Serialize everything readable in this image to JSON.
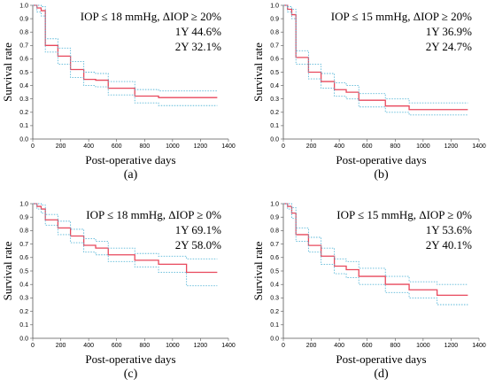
{
  "chart_data": [
    {
      "type": "line",
      "panel_label": "(a)",
      "xlabel": "Post-operative days",
      "ylabel": "Survival rate",
      "xlim": [
        0,
        1400
      ],
      "ylim": [
        0,
        1.0
      ],
      "xticks": [
        "0",
        "200",
        "400",
        "600",
        "800",
        "1000",
        "1200",
        "1400"
      ],
      "yticks": [
        "0.0",
        "0.1",
        "0.2",
        "0.3",
        "0.4",
        "0.5",
        "0.6",
        "0.7",
        "0.8",
        "0.9",
        "1.0"
      ],
      "annotation": [
        "IOP ≤ 18 mmHg, ΔIOP ≥ 20%",
        "1Y 44.6%",
        "2Y 32.1%"
      ],
      "colors": {
        "curve": "#e8485c",
        "ci": "#5bb8d8"
      },
      "series": [
        {
          "style": "solid",
          "x": [
            0,
            30,
            60,
            90,
            180,
            270,
            365,
            450,
            540,
            730,
            900,
            1320
          ],
          "y": [
            1.0,
            0.98,
            0.96,
            0.7,
            0.62,
            0.52,
            0.446,
            0.44,
            0.38,
            0.321,
            0.31,
            0.31
          ]
        },
        {
          "style": "dotted",
          "x": [
            0,
            30,
            60,
            90,
            180,
            270,
            365,
            450,
            540,
            730,
            900,
            1320
          ],
          "y": [
            1.0,
            1.0,
            0.99,
            0.75,
            0.68,
            0.58,
            0.5,
            0.49,
            0.43,
            0.37,
            0.36,
            0.36
          ]
        },
        {
          "style": "dotted",
          "x": [
            0,
            30,
            60,
            90,
            180,
            270,
            365,
            450,
            540,
            730,
            900,
            1320
          ],
          "y": [
            1.0,
            0.95,
            0.92,
            0.65,
            0.56,
            0.46,
            0.4,
            0.39,
            0.33,
            0.27,
            0.25,
            0.25
          ]
        }
      ]
    },
    {
      "type": "line",
      "panel_label": "(b)",
      "xlabel": "Post-operative days",
      "ylabel": "Survival rate",
      "xlim": [
        0,
        1400
      ],
      "ylim": [
        0,
        1.0
      ],
      "xticks": [
        "0",
        "200",
        "400",
        "600",
        "800",
        "1000",
        "1200",
        "1400"
      ],
      "yticks": [
        "0.0",
        "0.1",
        "0.2",
        "0.3",
        "0.4",
        "0.5",
        "0.6",
        "0.7",
        "0.8",
        "0.9",
        "1.0"
      ],
      "annotation": [
        "IOP ≤ 15 mmHg, ΔIOP ≥ 20%",
        "1Y 36.9%",
        "2Y 24.7%"
      ],
      "colors": {
        "curve": "#e8485c",
        "ci": "#5bb8d8"
      },
      "series": [
        {
          "style": "solid",
          "x": [
            0,
            30,
            60,
            90,
            180,
            270,
            365,
            450,
            540,
            730,
            900,
            1320
          ],
          "y": [
            1.0,
            0.97,
            0.93,
            0.61,
            0.5,
            0.43,
            0.369,
            0.35,
            0.29,
            0.247,
            0.22,
            0.22
          ]
        },
        {
          "style": "dotted",
          "x": [
            0,
            30,
            60,
            90,
            180,
            270,
            365,
            450,
            540,
            730,
            900,
            1320
          ],
          "y": [
            1.0,
            0.99,
            0.97,
            0.66,
            0.56,
            0.49,
            0.42,
            0.4,
            0.34,
            0.3,
            0.27,
            0.27
          ]
        },
        {
          "style": "dotted",
          "x": [
            0,
            30,
            60,
            90,
            180,
            270,
            365,
            450,
            540,
            730,
            900,
            1320
          ],
          "y": [
            1.0,
            0.95,
            0.9,
            0.56,
            0.45,
            0.38,
            0.32,
            0.3,
            0.24,
            0.2,
            0.18,
            0.18
          ]
        }
      ]
    },
    {
      "type": "line",
      "panel_label": "(c)",
      "xlabel": "Post-operative days",
      "ylabel": "Survival rate",
      "xlim": [
        0,
        1400
      ],
      "ylim": [
        0,
        1.0
      ],
      "xticks": [
        "0",
        "200",
        "400",
        "600",
        "800",
        "1000",
        "1200",
        "1400"
      ],
      "yticks": [
        "0.0",
        "0.1",
        "0.2",
        "0.3",
        "0.4",
        "0.5",
        "0.6",
        "0.7",
        "0.8",
        "0.9",
        "1.0"
      ],
      "annotation": [
        "IOP ≤ 18 mmHg, ΔIOP ≥ 0%",
        "1Y 69.1%",
        "2Y 58.0%"
      ],
      "colors": {
        "curve": "#e8485c",
        "ci": "#5bb8d8"
      },
      "series": [
        {
          "style": "solid",
          "x": [
            0,
            30,
            60,
            90,
            180,
            270,
            365,
            450,
            540,
            730,
            900,
            1100,
            1320
          ],
          "y": [
            1.0,
            0.98,
            0.96,
            0.88,
            0.82,
            0.76,
            0.691,
            0.67,
            0.62,
            0.58,
            0.55,
            0.49,
            0.49
          ]
        },
        {
          "style": "dotted",
          "x": [
            0,
            30,
            60,
            90,
            180,
            270,
            365,
            450,
            540,
            730,
            900,
            1100,
            1320
          ],
          "y": [
            1.0,
            1.0,
            0.99,
            0.92,
            0.87,
            0.81,
            0.74,
            0.72,
            0.67,
            0.63,
            0.61,
            0.59,
            0.59
          ]
        },
        {
          "style": "dotted",
          "x": [
            0,
            30,
            60,
            90,
            180,
            270,
            365,
            450,
            540,
            730,
            900,
            1100,
            1320
          ],
          "y": [
            1.0,
            0.96,
            0.93,
            0.84,
            0.77,
            0.71,
            0.64,
            0.62,
            0.57,
            0.53,
            0.49,
            0.39,
            0.39
          ]
        }
      ]
    },
    {
      "type": "line",
      "panel_label": "(d)",
      "xlabel": "Post-operative days",
      "ylabel": "Survival rate",
      "xlim": [
        0,
        1400
      ],
      "ylim": [
        0,
        1.0
      ],
      "xticks": [
        "0",
        "200",
        "400",
        "600",
        "800",
        "1000",
        "1200",
        "1400"
      ],
      "yticks": [
        "0.0",
        "0.1",
        "0.2",
        "0.3",
        "0.4",
        "0.5",
        "0.6",
        "0.7",
        "0.8",
        "0.9",
        "1.0"
      ],
      "annotation": [
        "IOP ≤ 15 mmHg, ΔIOP ≥ 0%",
        "1Y 53.6%",
        "2Y 40.1%"
      ],
      "colors": {
        "curve": "#e8485c",
        "ci": "#5bb8d8"
      },
      "series": [
        {
          "style": "solid",
          "x": [
            0,
            30,
            60,
            90,
            180,
            270,
            365,
            450,
            540,
            730,
            900,
            1100,
            1320
          ],
          "y": [
            1.0,
            0.98,
            0.93,
            0.77,
            0.69,
            0.61,
            0.536,
            0.51,
            0.46,
            0.401,
            0.36,
            0.32,
            0.32
          ]
        },
        {
          "style": "dotted",
          "x": [
            0,
            30,
            60,
            90,
            180,
            270,
            365,
            450,
            540,
            730,
            900,
            1100,
            1320
          ],
          "y": [
            1.0,
            1.0,
            0.97,
            0.82,
            0.75,
            0.67,
            0.59,
            0.57,
            0.52,
            0.46,
            0.42,
            0.4,
            0.4
          ]
        },
        {
          "style": "dotted",
          "x": [
            0,
            30,
            60,
            90,
            180,
            270,
            365,
            450,
            540,
            730,
            900,
            1100,
            1320
          ],
          "y": [
            1.0,
            0.96,
            0.89,
            0.72,
            0.64,
            0.55,
            0.48,
            0.45,
            0.4,
            0.34,
            0.3,
            0.25,
            0.25
          ]
        }
      ]
    }
  ]
}
